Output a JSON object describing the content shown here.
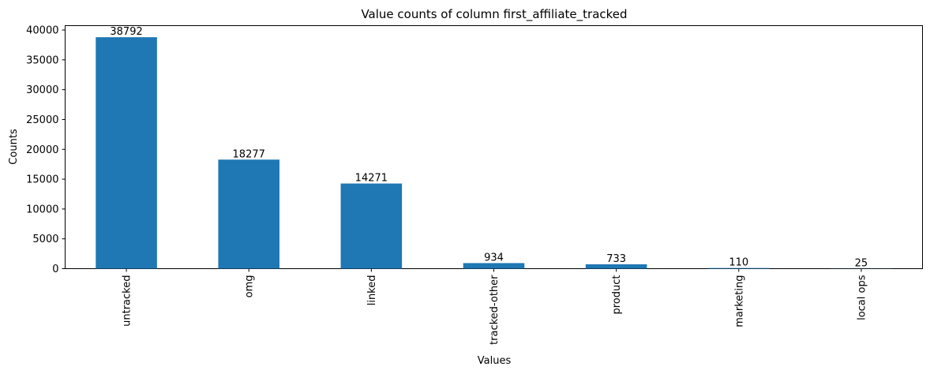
{
  "chart_data": {
    "type": "bar",
    "title": "Value counts of column first_affiliate_tracked",
    "xlabel": "Values",
    "ylabel": "Counts",
    "categories": [
      "untracked",
      "omg",
      "linked",
      "tracked-other",
      "product",
      "marketing",
      "local ops"
    ],
    "values": [
      38792,
      18277,
      14271,
      934,
      733,
      110,
      25
    ],
    "data_labels": [
      "38792",
      "18277",
      "14271",
      "934",
      "733",
      "110",
      "25"
    ],
    "yticks": [
      0,
      5000,
      10000,
      15000,
      20000,
      25000,
      30000,
      35000,
      40000
    ],
    "ylim": [
      0,
      40731.6
    ],
    "bar_color": "#1f77b4",
    "grid": false,
    "legend": false
  }
}
